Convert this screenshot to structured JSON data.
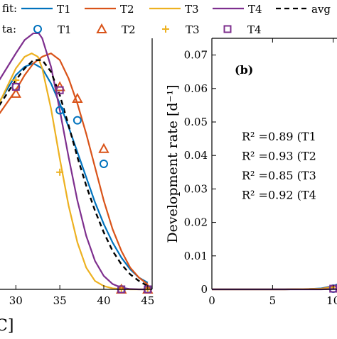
{
  "colors": {
    "T1": "#0072BD",
    "T2": "#D95319",
    "T3": "#EDB120",
    "T4": "#7E2F8E",
    "avg": "#000000"
  },
  "legend": {
    "fit_label": "fit:",
    "data_label": "ta:",
    "fit_entries": [
      "T1",
      "T2",
      "T3",
      "T4",
      "avg"
    ],
    "data_entries": [
      "T1",
      "T2",
      "T3",
      "T4"
    ],
    "data_markers": [
      "circle",
      "triangle",
      "plus",
      "square"
    ]
  },
  "chart_data": [
    {
      "panel": "a",
      "type": "line",
      "xlabel": "C]",
      "ylabel": "",
      "xlim": [
        26.5,
        45.5
      ],
      "ylim": [
        0,
        0.075
      ],
      "x_ticks": [
        30,
        35,
        40,
        45
      ],
      "x_tick_labels": [
        "30",
        "35",
        "40",
        "45"
      ],
      "y_ticks": [],
      "grid": false,
      "series": [
        {
          "name": "T1",
          "kind": "fit",
          "x": [
            26.5,
            28,
            30,
            31,
            32,
            33,
            34,
            35,
            36,
            37,
            38,
            39,
            40,
            41,
            42,
            43,
            44,
            45
          ],
          "y": [
            0.049,
            0.0555,
            0.064,
            0.0665,
            0.0675,
            0.066,
            0.0615,
            0.0555,
            0.0485,
            0.041,
            0.0335,
            0.026,
            0.0195,
            0.014,
            0.0095,
            0.006,
            0.0035,
            0.002
          ]
        },
        {
          "name": "T2",
          "kind": "fit",
          "x": [
            26.5,
            28,
            30,
            31,
            32,
            33,
            34,
            35,
            36,
            37,
            38,
            39,
            40,
            41,
            42,
            43,
            44,
            45
          ],
          "y": [
            0.047,
            0.052,
            0.0595,
            0.064,
            0.0675,
            0.0695,
            0.0705,
            0.0685,
            0.063,
            0.0555,
            0.0465,
            0.0365,
            0.0265,
            0.018,
            0.0115,
            0.0065,
            0.0035,
            0.0015
          ]
        },
        {
          "name": "T3",
          "kind": "fit",
          "x": [
            26.5,
            28,
            30,
            31,
            31.8,
            32.5,
            33,
            34,
            35,
            36,
            37,
            38,
            39,
            40,
            41,
            42,
            43,
            44,
            45
          ],
          "y": [
            0.043,
            0.055,
            0.066,
            0.0695,
            0.0705,
            0.0695,
            0.066,
            0.054,
            0.039,
            0.025,
            0.014,
            0.0065,
            0.0025,
            0.001,
            0.0003,
            0.0001,
            0,
            0,
            0
          ]
        },
        {
          "name": "T4",
          "kind": "fit",
          "x": [
            26.5,
            28,
            30,
            31,
            32,
            32.6,
            33,
            34,
            35,
            36,
            37,
            38,
            39,
            40,
            41,
            42,
            43,
            44,
            45
          ],
          "y": [
            0.0555,
            0.062,
            0.0705,
            0.0745,
            0.0765,
            0.0765,
            0.075,
            0.0665,
            0.0535,
            0.0395,
            0.0265,
            0.016,
            0.0085,
            0.004,
            0.0016,
            0.0005,
            0.0001,
            0,
            0
          ]
        },
        {
          "name": "avg",
          "kind": "fit",
          "x": [
            26.5,
            28,
            30,
            31,
            32,
            33,
            34,
            35,
            36,
            37,
            38,
            39,
            40,
            41,
            42,
            43,
            44,
            45
          ],
          "y": [
            0.0485,
            0.0545,
            0.0625,
            0.066,
            0.0685,
            0.0685,
            0.065,
            0.058,
            0.049,
            0.0395,
            0.031,
            0.0235,
            0.017,
            0.0115,
            0.0075,
            0.0045,
            0.0025,
            0.001
          ]
        },
        {
          "name": "T1",
          "kind": "data",
          "marker": "circle",
          "x": [
            30,
            35,
            37,
            40,
            42,
            45
          ],
          "y": [
            0.0605,
            0.0535,
            0.0505,
            0.0375,
            0,
            0
          ]
        },
        {
          "name": "T2",
          "kind": "data",
          "marker": "triangle",
          "x": [
            30,
            35,
            37,
            40,
            42,
            45
          ],
          "y": [
            0.0585,
            0.0605,
            0.057,
            0.042,
            0,
            0
          ]
        },
        {
          "name": "T3",
          "kind": "data",
          "marker": "plus",
          "x": [
            30,
            35,
            42,
            45
          ],
          "y": [
            0.0625,
            0.035,
            0,
            0
          ]
        },
        {
          "name": "T4",
          "kind": "data",
          "marker": "square",
          "x": [
            30,
            35,
            42,
            45
          ],
          "y": [
            0.0605,
            0.0595,
            0,
            0
          ]
        }
      ]
    },
    {
      "panel": "b",
      "panel_label": "(b)",
      "type": "line",
      "ylabel": "Development rate [d⁻¹]",
      "xlabel": "",
      "xlim": [
        0,
        14
      ],
      "ylim": [
        0,
        0.075
      ],
      "x_ticks": [
        0,
        5,
        10
      ],
      "x_tick_labels": [
        "0",
        "5",
        "10"
      ],
      "y_ticks": [
        0,
        0.01,
        0.02,
        0.03,
        0.04,
        0.05,
        0.06,
        0.07
      ],
      "y_tick_labels": [
        "0",
        "0.01",
        "0.02",
        "0.03",
        "0.04",
        "0.05",
        "0.06",
        "0.07"
      ],
      "grid": false,
      "annotations": [
        "R² =0.89 (T1",
        "R² =0.93 (T2",
        "R² =0.85 (T3",
        "R² =0.92 (T4"
      ],
      "series": [
        {
          "name": "T1",
          "kind": "fit",
          "x": [
            0,
            6,
            8,
            9,
            10,
            11,
            12,
            13,
            14
          ],
          "y": [
            0,
            0,
            0.0001,
            0.0003,
            0.001,
            0.0025,
            0.005,
            0.0085,
            0.0125
          ]
        },
        {
          "name": "T2",
          "kind": "fit",
          "x": [
            0,
            6,
            8,
            9,
            10,
            11,
            12,
            13,
            14
          ],
          "y": [
            0,
            0,
            0.0001,
            0.0002,
            0.0008,
            0.002,
            0.0045,
            0.0078,
            0.0118
          ]
        },
        {
          "name": "T3",
          "kind": "fit",
          "x": [
            0,
            6,
            8,
            9,
            10,
            11,
            12,
            13,
            14
          ],
          "y": [
            0,
            0,
            0.0001,
            0.0002,
            0.0006,
            0.0017,
            0.0038,
            0.0068,
            0.0105
          ]
        },
        {
          "name": "T4",
          "kind": "fit",
          "x": [
            0,
            6,
            8,
            9,
            10,
            11,
            12,
            13,
            14
          ],
          "y": [
            0,
            0,
            0,
            0,
            0.0001,
            0.0003,
            0.0007,
            0.0014,
            0.0025
          ]
        },
        {
          "name": "T1",
          "kind": "data",
          "marker": "circle",
          "x": [
            10
          ],
          "y": [
            0.0002
          ]
        },
        {
          "name": "T4",
          "kind": "data",
          "marker": "square",
          "x": [
            10
          ],
          "y": [
            0.0002
          ]
        }
      ]
    }
  ]
}
